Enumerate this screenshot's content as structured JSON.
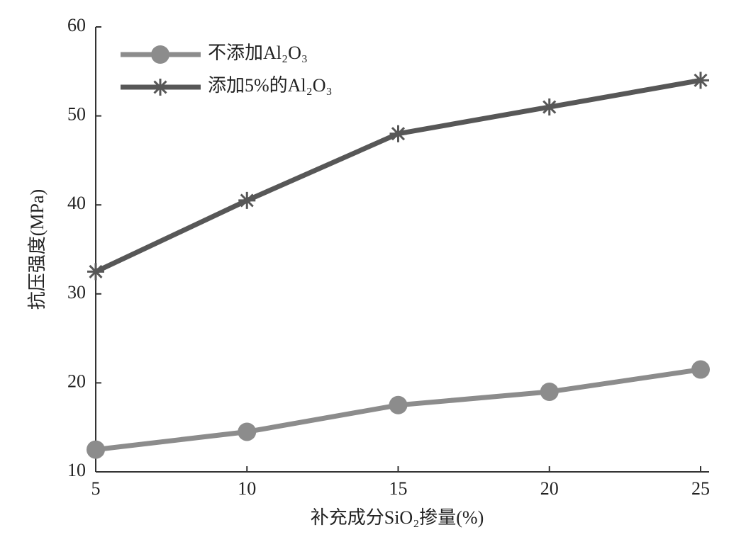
{
  "chart_data": {
    "type": "line",
    "x_label": "补充成分SiO₂掺量(%)",
    "y_label": "抗压强度(MPa)",
    "x": [
      5,
      10,
      15,
      20,
      25
    ],
    "series": [
      {
        "name": "不添加Al₂O₃",
        "color": "#8c8c8c",
        "marker": "circle",
        "values": [
          12.5,
          14.5,
          17.5,
          19,
          21.5
        ]
      },
      {
        "name": "添加5%的Al₂O₃",
        "color": "#575757",
        "marker": "asterisk",
        "values": [
          32.5,
          40.5,
          48,
          51,
          54
        ]
      }
    ],
    "xlim": [
      5,
      25
    ],
    "xticks": [
      5,
      10,
      15,
      20,
      25
    ],
    "ylim": [
      10,
      60
    ],
    "yticks": [
      10,
      20,
      30,
      40,
      50,
      60
    ],
    "legend": "upper left"
  }
}
